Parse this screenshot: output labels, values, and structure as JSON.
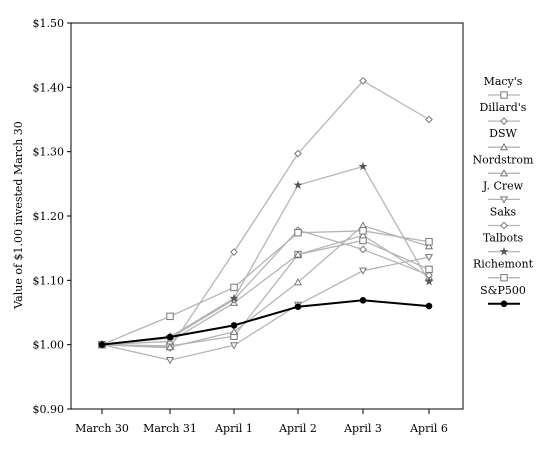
{
  "chart_data": {
    "type": "line",
    "ylabel": "Value of $1.00 invested March 30",
    "xlabel": "",
    "ylim": [
      0.9,
      1.5
    ],
    "yticks": [
      "$0.90",
      "$1.00",
      "$1.10",
      "$1.20",
      "$1.30",
      "$1.40",
      "$1.50"
    ],
    "ytick_values": [
      0.9,
      1.0,
      1.1,
      1.2,
      1.3,
      1.4,
      1.5
    ],
    "categories": [
      "March 30",
      "March 31",
      "April 1",
      "April 2",
      "April 3",
      "April 6"
    ],
    "legend_position": "right",
    "grid": false,
    "series": [
      {
        "name": "Macy's",
        "marker": "square",
        "color": "#b5b5b5",
        "values": [
          1.0,
          0.998,
          1.013,
          1.14,
          1.162,
          1.117
        ]
      },
      {
        "name": "Dillard's",
        "marker": "diamond",
        "color": "#b5b5b5",
        "values": [
          1.0,
          0.995,
          1.144,
          1.297,
          1.41,
          1.35
        ]
      },
      {
        "name": "DSW",
        "marker": "triangle-up",
        "color": "#b5b5b5",
        "values": [
          1.0,
          0.996,
          1.02,
          1.097,
          1.185,
          1.153
        ]
      },
      {
        "name": "Nordstrom",
        "marker": "triangle-up",
        "color": "#b5b5b5",
        "values": [
          1.0,
          1.005,
          1.065,
          1.14,
          1.17,
          1.105
        ]
      },
      {
        "name": "J. Crew",
        "marker": "triangle-down",
        "color": "#b5b5b5",
        "values": [
          1.0,
          0.976,
          0.999,
          1.062,
          1.115,
          1.136
        ]
      },
      {
        "name": "Saks",
        "marker": "diamond",
        "color": "#b5b5b5",
        "values": [
          1.0,
          1.01,
          1.07,
          1.178,
          1.148,
          1.108
        ]
      },
      {
        "name": "Talbots",
        "marker": "star",
        "color": "#b5b5b5",
        "values": [
          1.0,
          1.012,
          1.072,
          1.248,
          1.277,
          1.098
        ]
      },
      {
        "name": "Richemont",
        "marker": "square",
        "color": "#b5b5b5",
        "values": [
          1.0,
          1.044,
          1.089,
          1.174,
          1.177,
          1.16
        ]
      },
      {
        "name": "S&P500",
        "marker": "circle",
        "color": "#000000",
        "values": [
          1.0,
          1.012,
          1.03,
          1.059,
          1.069,
          1.06
        ]
      }
    ]
  }
}
